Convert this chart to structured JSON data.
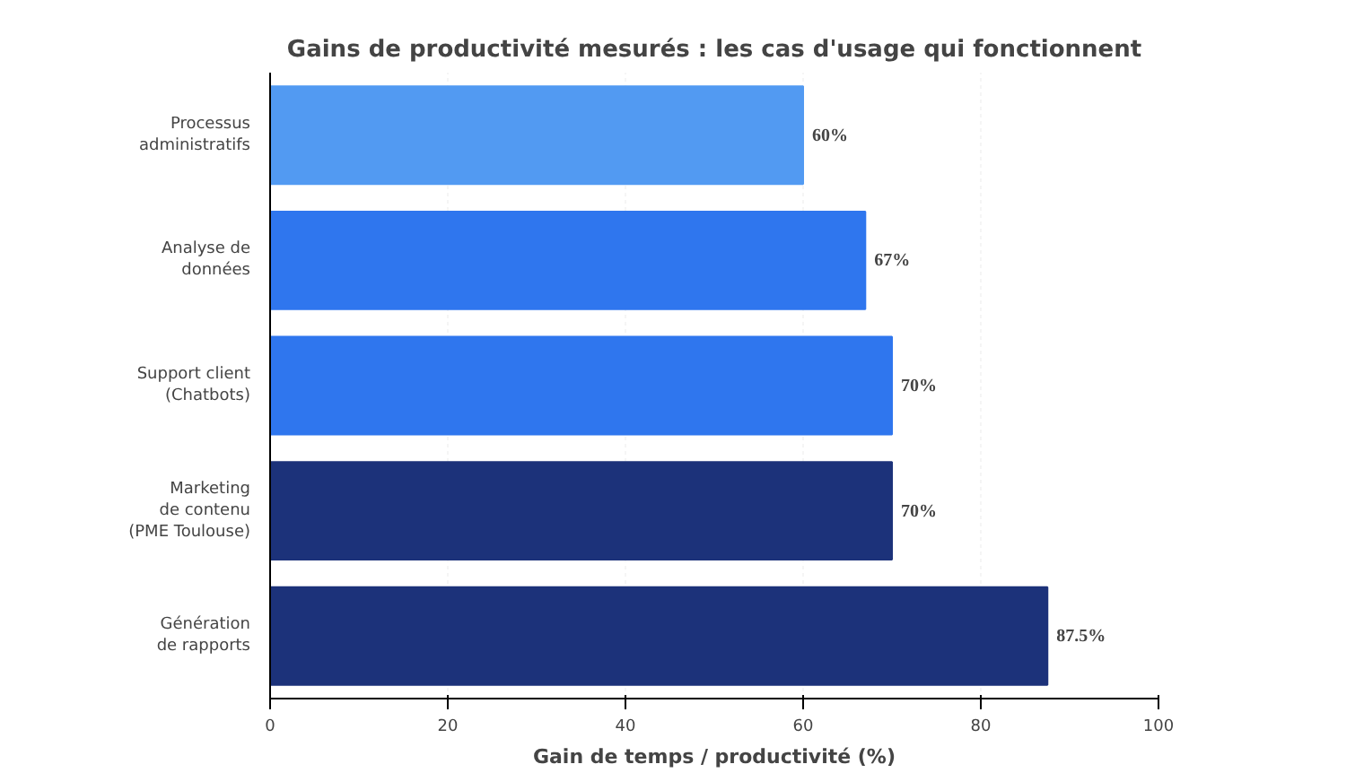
{
  "chart_data": {
    "type": "bar",
    "orientation": "horizontal",
    "title": "Gains de productivité mesurés : les cas d'usage qui fonctionnent",
    "xlabel": "Gain de temps / productivité (%)",
    "categories": [
      "Processus\nadministratifs",
      "Analyse de\ndonnées",
      "Support client\n(Chatbots)",
      "Marketing\nde contenu\n(PME Toulouse)",
      "Génération\nde rapports"
    ],
    "values": [
      60,
      67,
      70,
      70,
      87.5
    ],
    "colors": [
      "#529af2",
      "#2f76ee",
      "#2f76ee",
      "#1c327a",
      "#1c327a"
    ],
    "value_labels": [
      "60%",
      "67%",
      "70%",
      "70%",
      "87.5%"
    ],
    "xlim": [
      0,
      100
    ],
    "xticks": [
      0,
      20,
      40,
      60,
      80,
      100
    ],
    "grid": "x"
  }
}
